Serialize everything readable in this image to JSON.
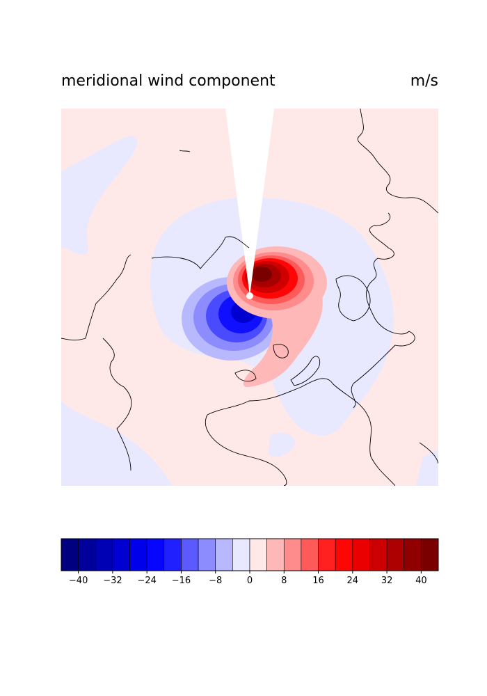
{
  "title_left": "meridional wind component",
  "title_right": "m/s",
  "chart_data": {
    "type": "contourf",
    "title": "meridional wind component",
    "units": "m/s",
    "projection": "north-polar-stereographic",
    "field_summary": {
      "negative_center_min": -20,
      "positive_center_max": 44,
      "background_value_range": [
        -4,
        4
      ]
    },
    "colorbar": {
      "levels": [
        -44,
        -40,
        -36,
        -32,
        -28,
        -24,
        -20,
        -16,
        -12,
        -8,
        -4,
        0,
        4,
        8,
        12,
        16,
        20,
        24,
        28,
        32,
        36,
        40,
        44
      ],
      "colors": [
        "#000080",
        "#00009a",
        "#0000b5",
        "#0000d0",
        "#0000ea",
        "#0606ff",
        "#2020ff",
        "#5a5aff",
        "#8c8cff",
        "#b8b8ff",
        "#e8e8ff",
        "#ffe8e8",
        "#ffb8b8",
        "#ff8c8c",
        "#ff5a5a",
        "#ff2020",
        "#ff0606",
        "#ea0000",
        "#cc0000",
        "#ad0000",
        "#900000",
        "#7a0000"
      ],
      "tick_values": [
        -40,
        -32,
        -24,
        -16,
        -8,
        0,
        8,
        16,
        24,
        32,
        40
      ],
      "tick_labels": [
        "−40",
        "−32",
        "−24",
        "−16",
        "−8",
        "0",
        "8",
        "16",
        "24",
        "32",
        "40"
      ]
    }
  }
}
